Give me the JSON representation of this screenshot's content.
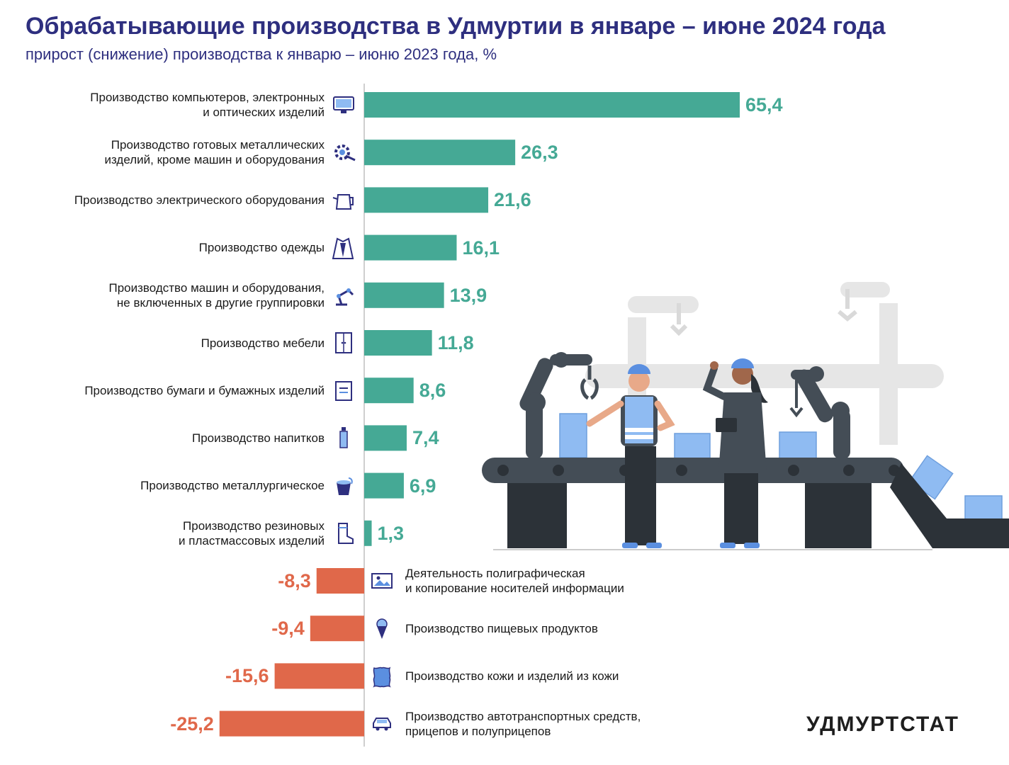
{
  "title": "Обрабатывающие производства в Удмуртии в январе – июне 2024 года",
  "subtitle": "прирост (снижение) производства к январю – июню 2023 года, %",
  "logo": "УДМУРТСТАТ",
  "colors": {
    "positive": "#45a995",
    "negative": "#e0684a",
    "title": "#2e2f7f",
    "icon_accent": "#5b8fe0",
    "icon_dark": "#2e2f7f"
  },
  "chart_data": {
    "type": "bar",
    "orientation": "horizontal",
    "categories": [
      [
        "Производство компьютеров, электронных",
        "и оптических изделий"
      ],
      [
        "Производство готовых металлических",
        "изделий, кроме машин и оборудования"
      ],
      [
        "Производство электрического оборудования"
      ],
      [
        "Производство одежды"
      ],
      [
        "Производство машин и оборудования,",
        "не включенных в другие группировки"
      ],
      [
        "Производство мебели"
      ],
      [
        "Производство бумаги и бумажных изделий"
      ],
      [
        "Производство напитков"
      ],
      [
        "Производство металлургическое"
      ],
      [
        "Производство резиновых",
        "и пластмассовых изделий"
      ],
      [
        "Деятельность полиграфическая",
        "и копирование носителей информации"
      ],
      [
        "Производство пищевых продуктов"
      ],
      [
        "Производство кожи и изделий из кожи"
      ],
      [
        "Производство автотранспортных средств,",
        "прицепов и полуприцепов"
      ]
    ],
    "values": [
      65.4,
      26.3,
      21.6,
      16.1,
      13.9,
      11.8,
      8.6,
      7.4,
      6.9,
      1.3,
      -8.3,
      -9.4,
      -15.6,
      -25.2
    ],
    "value_labels": [
      "65,4",
      "26,3",
      "21,6",
      "16,1",
      "13,9",
      "11,8",
      "8,6",
      "7,4",
      "6,9",
      "1,3",
      "-8,3",
      "-9,4",
      "-15,6",
      "-25,2"
    ],
    "icons": [
      "computer-icon",
      "gear-wrench-icon",
      "electric-kettle-icon",
      "clothing-icon",
      "robot-arm-icon",
      "wardrobe-icon",
      "paper-document-icon",
      "bottle-icon",
      "metal-bucket-icon",
      "rubber-boot-icon",
      "printed-picture-icon",
      "ice-cream-icon",
      "leather-hide-icon",
      "car-icon"
    ],
    "grid": false,
    "legend": "none"
  }
}
